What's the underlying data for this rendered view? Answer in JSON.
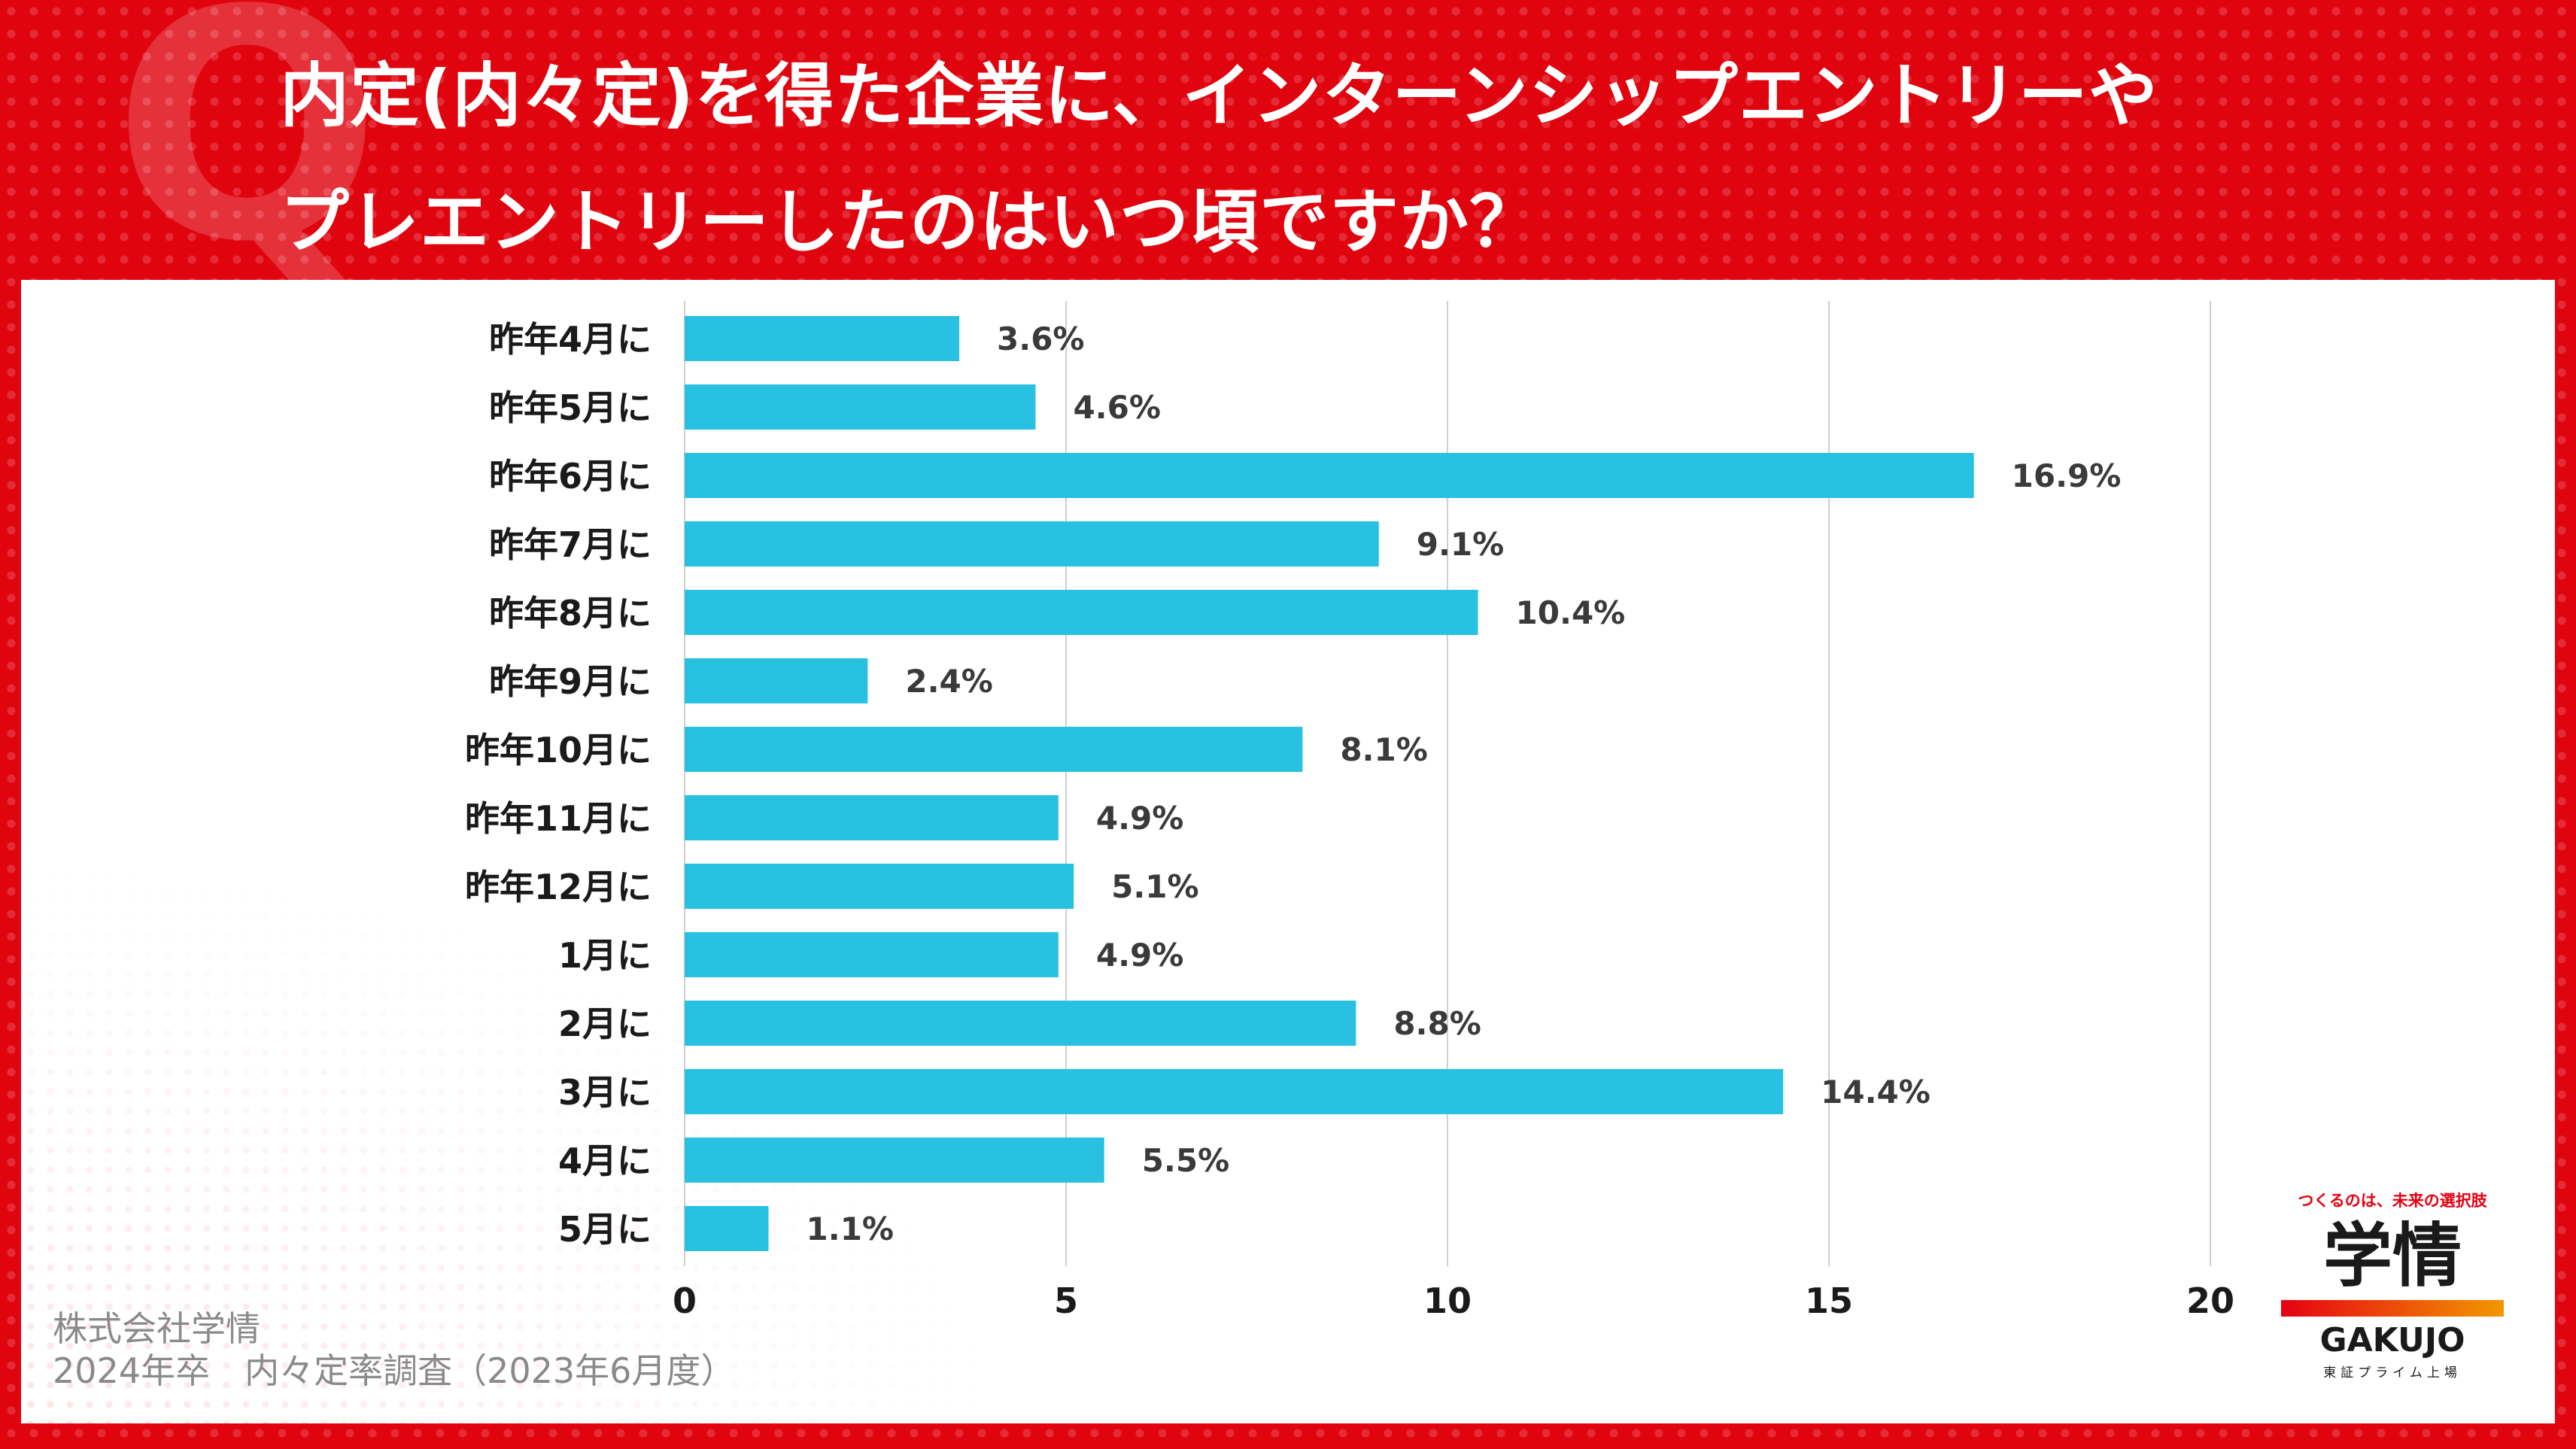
{
  "header": {
    "q_mark": "Q",
    "title_line1": "内定(内々定)を得た企業に、インターンシップエントリーや",
    "title_line2": "プレエントリーしたのはいつ頃ですか？"
  },
  "source": {
    "line1": "株式会社学情",
    "line2": "2024年卒　内々定率調査（2023年6月度）"
  },
  "logo": {
    "tagline": "つくるのは、未来の選択肢",
    "kanji": "学情",
    "english": "GAKUJO",
    "sub": "東証プライム上場"
  },
  "colors": {
    "bar": "#29c1e2",
    "background_red": "#e0040f",
    "grid": "#cfcfcf"
  },
  "chart_data": {
    "type": "bar",
    "orientation": "horizontal",
    "categories": [
      "昨年4月に",
      "昨年5月に",
      "昨年6月に",
      "昨年7月に",
      "昨年8月に",
      "昨年9月に",
      "昨年10月に",
      "昨年11月に",
      "昨年12月に",
      "1月に",
      "2月に",
      "3月に",
      "4月に",
      "5月に"
    ],
    "values": [
      3.6,
      4.6,
      16.9,
      9.1,
      10.4,
      2.4,
      8.1,
      4.9,
      5.1,
      4.9,
      8.8,
      14.4,
      5.5,
      1.1
    ],
    "value_labels": [
      "3.6%",
      "4.6%",
      "16.9%",
      "9.1%",
      "10.4%",
      "2.4%",
      "8.1%",
      "4.9%",
      "5.1%",
      "4.9%",
      "8.8%",
      "14.4%",
      "5.5%",
      "1.1%"
    ],
    "xlim": [
      0,
      20
    ],
    "xticks": [
      "0",
      "5",
      "10",
      "15",
      "20"
    ],
    "grid": true,
    "legend": "none"
  }
}
